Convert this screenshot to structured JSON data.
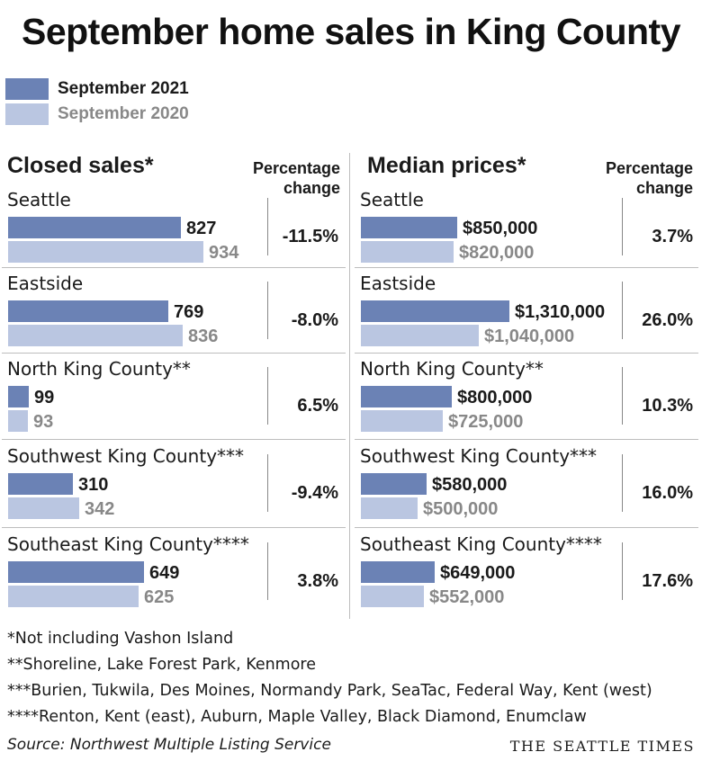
{
  "title": "September home sales in King County",
  "legend": [
    {
      "label": "September 2021",
      "color": "#6b82b5",
      "text_color": "#1a1a1a"
    },
    {
      "label": "September 2020",
      "color": "#bac6e1",
      "text_color": "#888888"
    }
  ],
  "headers": {
    "closed": "Closed sales*",
    "median": "Median prices*",
    "pct_line1": "Percentage",
    "pct_line2": "change"
  },
  "colors": {
    "dark": "#6b82b5",
    "light": "#bac6e1",
    "dark_text": "#1a1a1a",
    "light_text": "#888888"
  },
  "chart_data": [
    {
      "type": "bar",
      "title": "Closed sales*",
      "categories": [
        "Seattle",
        "Eastside",
        "North King County**",
        "Southwest King County***",
        "Southeast King County****"
      ],
      "series": [
        {
          "name": "September 2021",
          "values": [
            827,
            769,
            99,
            310,
            649
          ],
          "labels": [
            "827",
            "769",
            "99",
            "310",
            "649"
          ]
        },
        {
          "name": "September 2020",
          "values": [
            934,
            836,
            93,
            342,
            625
          ],
          "labels": [
            "934",
            "836",
            "93",
            "342",
            "625"
          ]
        }
      ],
      "percentage_change": [
        "-11.5%",
        "-8.0%",
        "6.5%",
        "-9.4%",
        "3.8%"
      ],
      "xlim": [
        0,
        1000
      ]
    },
    {
      "type": "bar",
      "title": "Median prices*",
      "categories": [
        "Seattle",
        "Eastside",
        "North King County**",
        "Southwest King County***",
        "Southeast King County****"
      ],
      "series": [
        {
          "name": "September 2021",
          "values": [
            850000,
            1310000,
            800000,
            580000,
            649000
          ],
          "labels": [
            "$850,000",
            "$1,310,000",
            "$800,000",
            "$580,000",
            "$649,000"
          ]
        },
        {
          "name": "September 2020",
          "values": [
            820000,
            1040000,
            725000,
            500000,
            552000
          ],
          "labels": [
            "$820,000",
            "$1,040,000",
            "$725,000",
            "$500,000",
            "$552,000"
          ]
        }
      ],
      "percentage_change": [
        "3.7%",
        "26.0%",
        "10.3%",
        "16.0%",
        "17.6%"
      ],
      "xlim": [
        0,
        1310000
      ]
    }
  ],
  "footnotes": [
    "*Not including Vashon Island",
    "**Shoreline, Lake Forest Park, Kenmore",
    "***Burien, Tukwila, Des Moines, Normandy Park, SeaTac, Federal Way, Kent (west)",
    "****Renton, Kent (east), Auburn, Maple Valley, Black Diamond, Enumclaw"
  ],
  "source": "Source: Northwest Multiple Listing Service",
  "brand": "THE SEATTLE TIMES"
}
